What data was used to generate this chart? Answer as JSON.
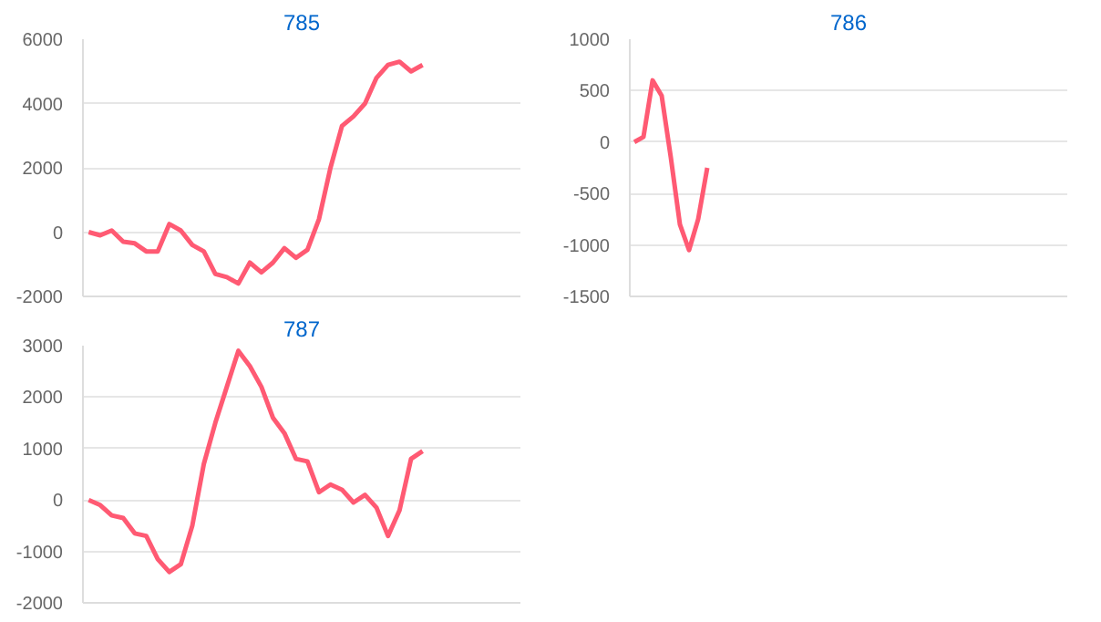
{
  "chart_data": [
    {
      "type": "line",
      "title": "785",
      "categories": [
        null,
        null,
        null,
        null,
        null,
        null,
        null,
        null,
        null,
        null,
        null,
        null,
        null,
        null,
        null,
        null,
        null,
        null,
        null,
        null,
        null,
        null,
        null,
        null,
        null,
        null,
        null,
        null,
        null,
        null,
        null,
        null,
        null,
        null,
        null,
        null,
        null,
        null
      ],
      "series": [
        {
          "color": "#ff5a73",
          "values": [
            0,
            -100,
            50,
            -300,
            -350,
            -600,
            -600,
            250,
            50,
            -400,
            -600,
            -1300,
            -1400,
            -1600,
            -950,
            -1250,
            -950,
            -500,
            -800,
            -550,
            400,
            2000,
            3300,
            3600,
            4000,
            4800,
            5200,
            5300,
            5000,
            5200,
            null,
            null,
            null,
            null,
            null,
            null,
            null,
            null
          ]
        }
      ],
      "ylim": [
        -2000,
        6000
      ],
      "yticks": [
        -2000,
        0,
        2000,
        4000,
        6000
      ],
      "grid": "y",
      "tick_labels": "y"
    },
    {
      "type": "line",
      "title": "786",
      "categories": [
        null,
        null,
        null,
        null,
        null,
        null,
        null,
        null,
        null,
        null,
        null,
        null,
        null,
        null,
        null,
        null,
        null,
        null,
        null,
        null,
        null,
        null,
        null,
        null,
        null,
        null,
        null,
        null,
        null,
        null,
        null,
        null,
        null,
        null,
        null,
        null,
        null,
        null,
        null,
        null,
        null,
        null,
        null,
        null,
        null,
        null,
        null,
        null
      ],
      "series": [
        {
          "color": "#ff5a73",
          "values": [
            0,
            50,
            600,
            450,
            -150,
            -800,
            -1050,
            -750,
            -250,
            null,
            null,
            null,
            null,
            null,
            null,
            null,
            null,
            null,
            null,
            null,
            null,
            null,
            null,
            null,
            null,
            null,
            null,
            null,
            null,
            null,
            null,
            null,
            null,
            null,
            null,
            null,
            null,
            null,
            null,
            null,
            null,
            null,
            null,
            null,
            null,
            null,
            null,
            null
          ]
        }
      ],
      "ylim": [
        -1500,
        1000
      ],
      "yticks": [
        -1500,
        -1000,
        -500,
        0,
        500,
        1000
      ],
      "grid": "y",
      "tick_labels": "y"
    },
    {
      "type": "line",
      "title": "787",
      "categories": [
        null,
        null,
        null,
        null,
        null,
        null,
        null,
        null,
        null,
        null,
        null,
        null,
        null,
        null,
        null,
        null,
        null,
        null,
        null,
        null,
        null,
        null,
        null,
        null,
        null,
        null,
        null,
        null,
        null,
        null,
        null,
        null,
        null,
        null,
        null,
        null,
        null,
        null
      ],
      "series": [
        {
          "color": "#ff5a73",
          "values": [
            0,
            -100,
            -300,
            -350,
            -650,
            -700,
            -1150,
            -1400,
            -1250,
            -500,
            700,
            1500,
            2200,
            2900,
            2600,
            2200,
            1600,
            1300,
            800,
            750,
            150,
            300,
            200,
            -50,
            100,
            -150,
            -700,
            -200,
            800,
            950,
            null,
            null,
            null,
            null,
            null,
            null,
            null,
            null
          ]
        }
      ],
      "ylim": [
        -2000,
        3000
      ],
      "yticks": [
        -2000,
        -1000,
        0,
        1000,
        2000,
        3000
      ],
      "grid": "y",
      "tick_labels": "y"
    }
  ]
}
